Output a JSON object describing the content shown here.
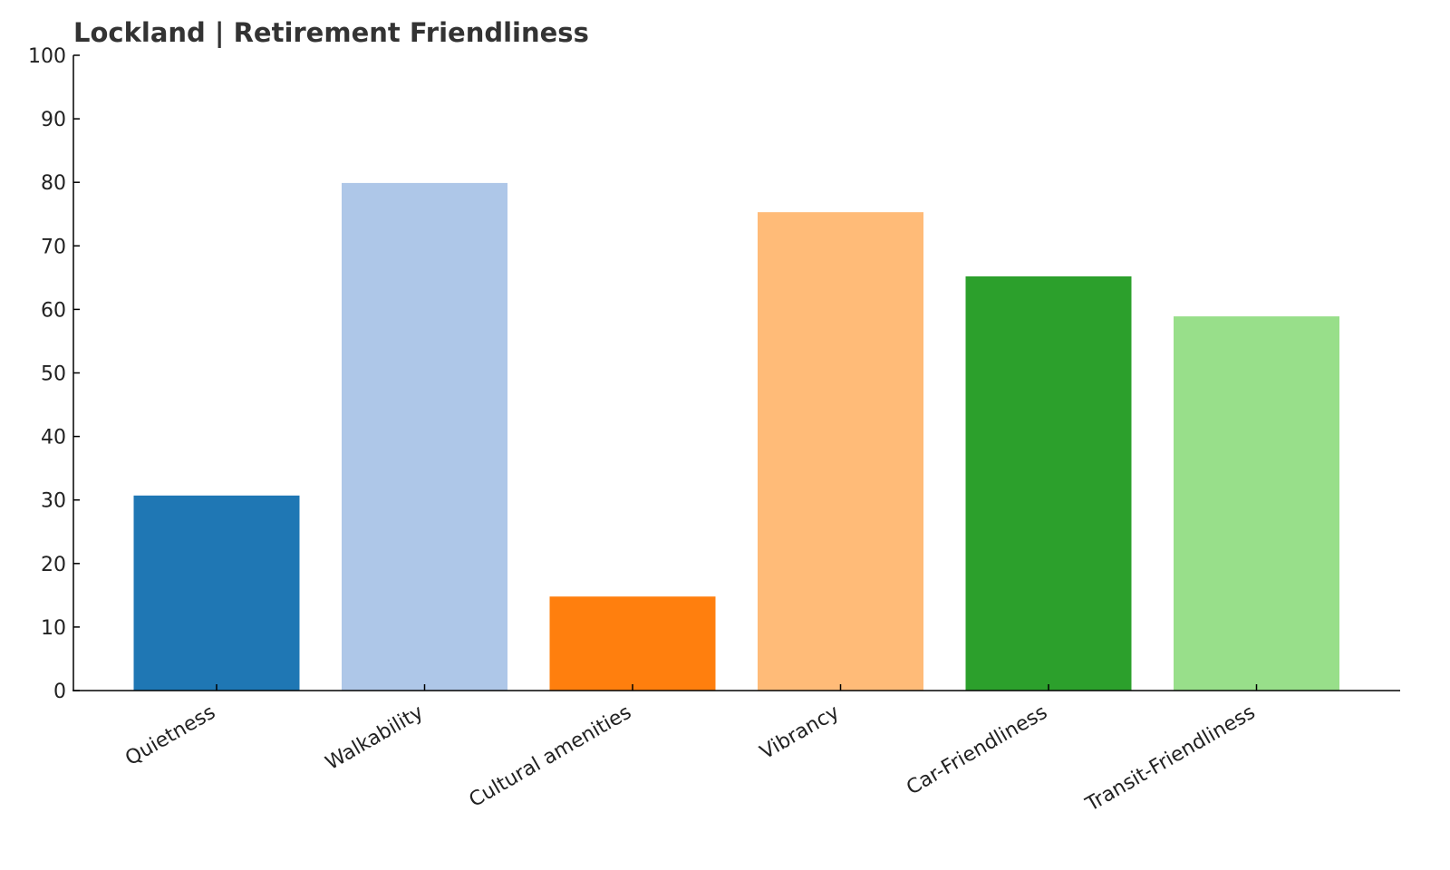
{
  "chart_data": {
    "type": "bar",
    "title": "Lockland | Retirement Friendliness",
    "categories": [
      "Quietness",
      "Walkability",
      "Cultural amenities",
      "Vibrancy",
      "Car-Friendliness",
      "Transit-Friendliness"
    ],
    "values": [
      30.7,
      79.9,
      14.8,
      75.3,
      65.2,
      58.9
    ],
    "colors": [
      "#1f77b4",
      "#aec7e8",
      "#ff7f0e",
      "#ffbb78",
      "#2ca02c",
      "#98df8a"
    ],
    "ylim": [
      0,
      100
    ],
    "yticks": [
      0,
      10,
      20,
      30,
      40,
      50,
      60,
      70,
      80,
      90,
      100
    ],
    "grid": false
  }
}
